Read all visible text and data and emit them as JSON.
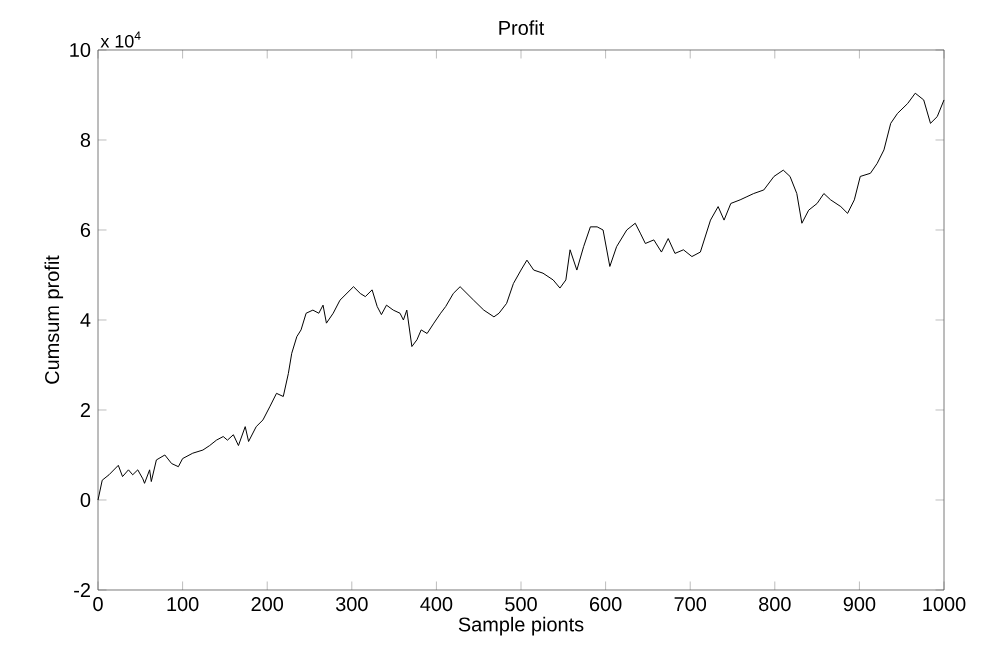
{
  "chart_data": {
    "type": "line",
    "title": "Profit",
    "xlabel": "Sample pionts",
    "ylabel": "Cumsum profit",
    "annotations": [
      "x 10$^{4}$"
    ],
    "color": "#000000",
    "grid": false,
    "marker": "none",
    "line_style": "solid",
    "xlim": [
      0,
      1000
    ],
    "xticks": [
      0,
      100,
      200,
      300,
      400,
      500,
      600,
      700,
      800,
      900,
      1000
    ],
    "ylim": [
      -2,
      10
    ],
    "yticks": [
      -2,
      0,
      2,
      4,
      6,
      8,
      10
    ],
    "x": [
      0,
      5,
      13,
      24,
      29,
      36,
      41,
      47,
      53,
      55,
      61,
      63,
      69,
      79,
      87,
      95,
      100,
      112,
      124,
      132,
      140,
      148,
      153,
      160,
      166,
      174,
      178,
      187,
      195,
      203,
      211,
      219,
      225,
      229,
      235,
      240,
      246,
      254,
      261,
      266,
      270,
      278,
      286,
      294,
      302,
      310,
      316,
      324,
      330,
      335,
      341,
      349,
      357,
      361,
      365,
      371,
      377,
      382,
      389,
      397,
      405,
      411,
      420,
      428,
      436,
      444,
      456,
      468,
      474,
      483,
      491,
      500,
      507,
      515,
      526,
      538,
      546,
      553,
      558,
      566,
      574,
      582,
      590,
      597,
      605,
      613,
      625,
      635,
      641,
      647,
      657,
      666,
      674,
      682,
      692,
      702,
      712,
      724,
      733,
      740,
      748,
      759,
      767,
      775,
      787,
      799,
      810,
      818,
      826,
      832,
      840,
      850,
      858,
      866,
      878,
      886,
      894,
      901,
      913,
      921,
      929,
      937,
      945,
      957,
      966,
      976,
      984,
      992,
      1000
    ],
    "values": [
      0,
      0.44,
      0.56,
      0.77,
      0.52,
      0.67,
      0.56,
      0.67,
      0.47,
      0.37,
      0.67,
      0.41,
      0.89,
      1.0,
      0.81,
      0.74,
      0.92,
      1.04,
      1.11,
      1.21,
      1.33,
      1.41,
      1.33,
      1.45,
      1.21,
      1.63,
      1.3,
      1.63,
      1.78,
      2.07,
      2.37,
      2.3,
      2.81,
      3.26,
      3.63,
      3.78,
      4.15,
      4.22,
      4.15,
      4.33,
      3.93,
      4.15,
      4.44,
      4.59,
      4.74,
      4.59,
      4.52,
      4.67,
      4.3,
      4.12,
      4.33,
      4.22,
      4.15,
      4.0,
      4.22,
      3.41,
      3.56,
      3.78,
      3.7,
      3.93,
      4.15,
      4.3,
      4.59,
      4.74,
      4.59,
      4.44,
      4.22,
      4.07,
      4.15,
      4.37,
      4.81,
      5.11,
      5.33,
      5.11,
      5.04,
      4.89,
      4.71,
      4.89,
      5.56,
      5.11,
      5.63,
      6.07,
      6.07,
      6.0,
      5.19,
      5.63,
      6.0,
      6.15,
      5.93,
      5.7,
      5.78,
      5.51,
      5.81,
      5.48,
      5.56,
      5.41,
      5.51,
      6.22,
      6.52,
      6.22,
      6.59,
      6.67,
      6.74,
      6.81,
      6.89,
      7.19,
      7.33,
      7.19,
      6.81,
      6.15,
      6.44,
      6.59,
      6.81,
      6.67,
      6.52,
      6.37,
      6.67,
      7.19,
      7.26,
      7.48,
      7.78,
      8.37,
      8.59,
      8.81,
      9.04,
      8.89,
      8.37,
      8.52,
      8.89
    ]
  }
}
